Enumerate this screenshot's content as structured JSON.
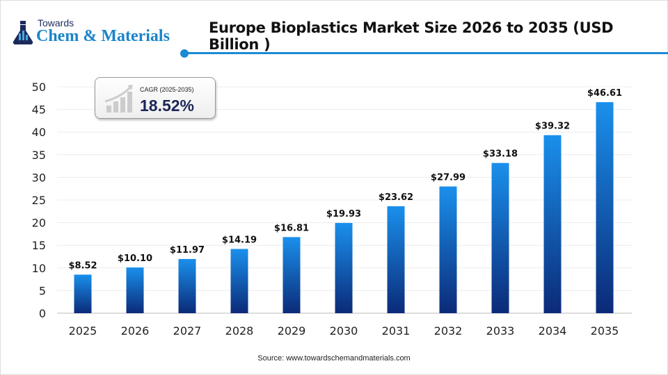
{
  "logo": {
    "line1": "Towards",
    "line2": "Chem & Materials"
  },
  "cagr": {
    "label": "CAGR (2025-2035)",
    "value": "18.52%"
  },
  "source": "Source: www.towardschemandmaterials.com",
  "colors": {
    "bar_top": "#1a90ec",
    "bar_bottom": "#0b2a78",
    "accent": "#1a8ad4"
  },
  "chart_data": {
    "type": "bar",
    "title": "Europe Bioplastics Market Size 2026 to 2035 (USD Billion )",
    "categories": [
      "2025",
      "2026",
      "2027",
      "2028",
      "2029",
      "2030",
      "2031",
      "2032",
      "2033",
      "2034",
      "2035"
    ],
    "values": [
      8.52,
      10.1,
      11.97,
      14.19,
      16.81,
      19.93,
      23.62,
      27.99,
      33.18,
      39.32,
      46.61
    ],
    "data_labels": [
      "$8.52",
      "$10.10",
      "$11.97",
      "$14.19",
      "$16.81",
      "$19.93",
      "$23.62",
      "$27.99",
      "$33.18",
      "$39.32",
      "$46.61"
    ],
    "ylim": [
      0,
      50
    ],
    "yticks": [
      0,
      5,
      10,
      15,
      20,
      25,
      30,
      35,
      40,
      45,
      50
    ],
    "grid": true,
    "xlabel": "",
    "ylabel": ""
  }
}
